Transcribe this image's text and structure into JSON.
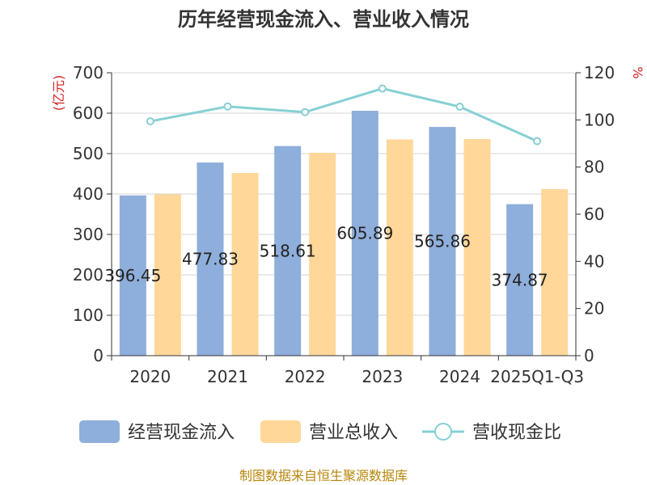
{
  "chart_data": {
    "type": "bar",
    "title": "历年经营现金流入、营业收入情况",
    "categories": [
      "2020",
      "2021",
      "2022",
      "2023",
      "2024",
      "2025Q1-Q3"
    ],
    "series": [
      {
        "name": "经营现金流入",
        "axis": "left",
        "kind": "bar",
        "color": "#8eaedb",
        "values": [
          396.45,
          477.83,
          518.61,
          605.89,
          565.86,
          374.87
        ]
      },
      {
        "name": "营业总收入",
        "axis": "left",
        "kind": "bar",
        "color": "#ffd799",
        "values": [
          399,
          452,
          502,
          535,
          536,
          412
        ]
      },
      {
        "name": "营收现金比",
        "axis": "right",
        "kind": "line",
        "color": "#86d0d4",
        "values": [
          99.4,
          105.7,
          103.3,
          113.3,
          105.6,
          91.0
        ]
      }
    ],
    "bar_labels": [
      "396.45",
      "477.83",
      "518.61",
      "605.89",
      "565.86",
      "374.87"
    ],
    "y_left": {
      "unit": "(亿元)",
      "min": 0,
      "max": 700,
      "ticks": [
        0,
        100,
        200,
        300,
        400,
        500,
        600,
        700
      ]
    },
    "y_right": {
      "unit": "%",
      "min": 0,
      "max": 120,
      "ticks": [
        0,
        20,
        40,
        60,
        80,
        100,
        120
      ]
    },
    "grid": true,
    "legend_position": "bottom",
    "footer": "制图数据来自恒生聚源数据库"
  }
}
